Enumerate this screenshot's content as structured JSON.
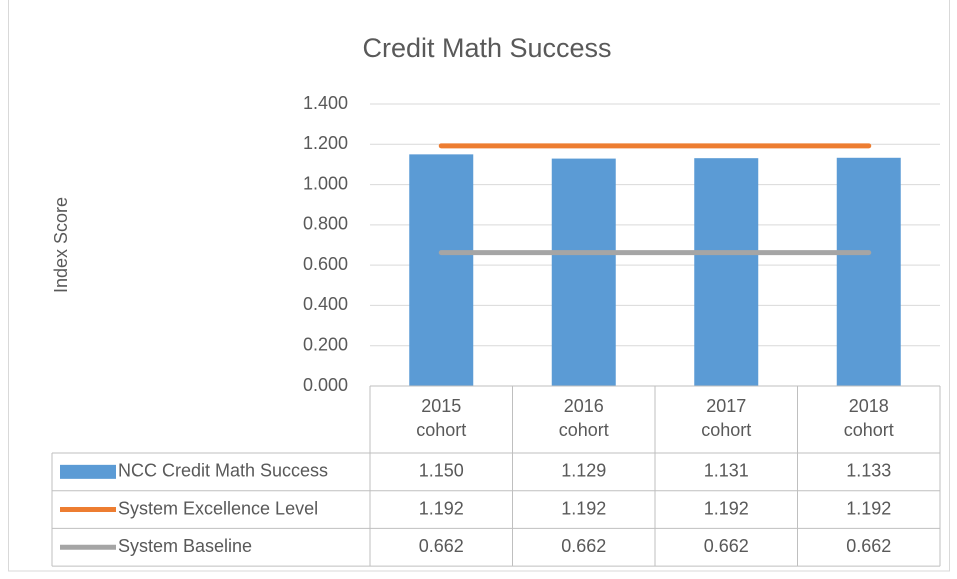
{
  "chart_data": {
    "type": "bar",
    "title": "Credit Math Success",
    "y_label": "Index Score",
    "categories": [
      "2015 cohort",
      "2016 cohort",
      "2017 cohort",
      "2018 cohort"
    ],
    "series": [
      {
        "name": "NCC Credit Math Success",
        "type": "bar",
        "color": "#5b9bd5",
        "values": [
          1.15,
          1.129,
          1.131,
          1.133
        ],
        "value_labels": [
          "1.150",
          "1.129",
          "1.131",
          "1.133"
        ]
      },
      {
        "name": "System Excellence Level",
        "type": "line",
        "color": "#ed7d31",
        "values": [
          1.192,
          1.192,
          1.192,
          1.192
        ],
        "value_labels": [
          "1.192",
          "1.192",
          "1.192",
          "1.192"
        ]
      },
      {
        "name": "System Baseline",
        "type": "line",
        "color": "#a5a5a5",
        "values": [
          0.662,
          0.662,
          0.662,
          0.662
        ],
        "value_labels": [
          "0.662",
          "0.662",
          "0.662",
          "0.662"
        ]
      }
    ],
    "ylim": [
      0,
      1.4
    ],
    "yticks": [
      {
        "value": 0,
        "label": "0.000"
      },
      {
        "value": 0.2,
        "label": "0.200"
      },
      {
        "value": 0.4,
        "label": "0.400"
      },
      {
        "value": 0.6,
        "label": "0.600"
      },
      {
        "value": 0.8,
        "label": "0.800"
      },
      {
        "value": 1.0,
        "label": "1.000"
      },
      {
        "value": 1.2,
        "label": "1.200"
      },
      {
        "value": 1.4,
        "label": "1.400"
      }
    ],
    "grid": true,
    "data_table": true
  }
}
